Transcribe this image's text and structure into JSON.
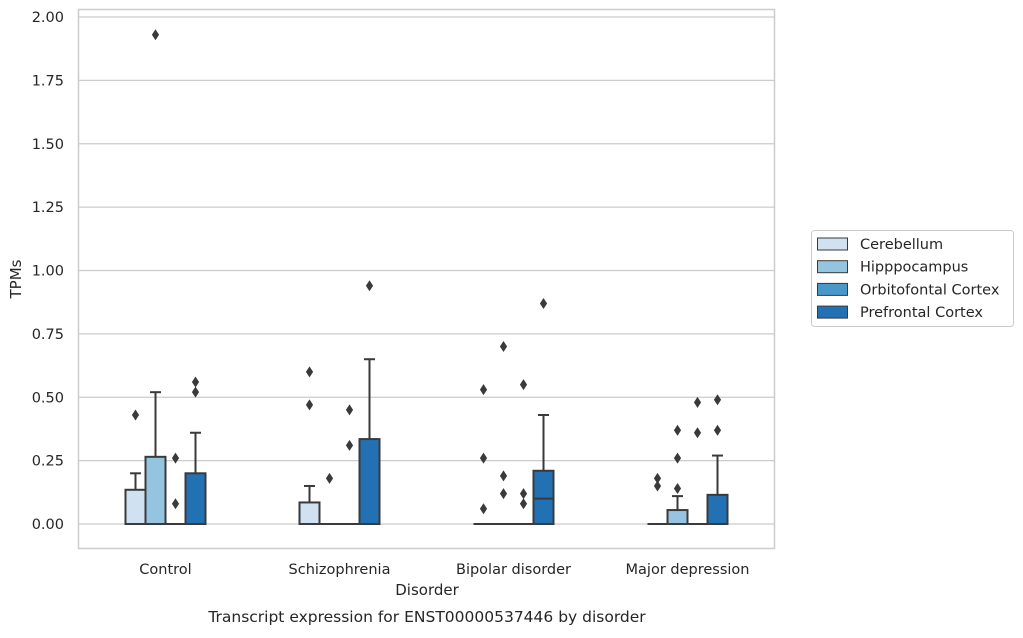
{
  "chart_data": {
    "type": "box",
    "xlabel": "Disorder",
    "ylabel": "TPMs",
    "caption": "Transcript expression for ENST00000537446 by disorder",
    "ylim": [
      -0.09,
      2.03
    ],
    "yticks": [
      0.0,
      0.25,
      0.5,
      0.75,
      1.0,
      1.25,
      1.5,
      1.75,
      2.0
    ],
    "ytick_labels": [
      "0.00",
      "0.25",
      "0.50",
      "0.75",
      "1.00",
      "1.25",
      "1.50",
      "1.75",
      "2.00"
    ],
    "grid": "horizontal",
    "legend_position": "right",
    "categories": [
      "Control",
      "Schizophrenia",
      "Bipolar disorder",
      "Major depression"
    ],
    "series": [
      {
        "name": "Cerebellum",
        "color": "#d0e1f2",
        "boxes": [
          {
            "whisker_low": 0.0,
            "q1": 0.0,
            "median": 0.0,
            "q3": 0.135,
            "whisker_high": 0.2,
            "outliers": [
              0.43
            ]
          },
          {
            "whisker_low": 0.0,
            "q1": 0.0,
            "median": 0.0,
            "q3": 0.085,
            "whisker_high": 0.15,
            "outliers": [
              0.47,
              0.6
            ]
          },
          {
            "whisker_low": 0.0,
            "q1": 0.0,
            "median": 0.0,
            "q3": 0.0,
            "whisker_high": 0.0,
            "outliers": [
              0.06,
              0.26,
              0.53
            ]
          },
          {
            "whisker_low": 0.0,
            "q1": 0.0,
            "median": 0.0,
            "q3": 0.0,
            "whisker_high": 0.0,
            "outliers": [
              0.15,
              0.18
            ]
          }
        ]
      },
      {
        "name": "Hipppocampus",
        "color": "#94c4df",
        "boxes": [
          {
            "whisker_low": 0.0,
            "q1": 0.0,
            "median": 0.0,
            "q3": 0.265,
            "whisker_high": 0.52,
            "outliers": [
              1.93
            ]
          },
          {
            "whisker_low": 0.0,
            "q1": 0.0,
            "median": 0.0,
            "q3": 0.0,
            "whisker_high": 0.0,
            "outliers": [
              0.18
            ]
          },
          {
            "whisker_low": 0.0,
            "q1": 0.0,
            "median": 0.0,
            "q3": 0.0,
            "whisker_high": 0.0,
            "outliers": [
              0.12,
              0.19,
              0.7
            ]
          },
          {
            "whisker_low": 0.0,
            "q1": 0.0,
            "median": 0.0,
            "q3": 0.055,
            "whisker_high": 0.11,
            "outliers": [
              0.14,
              0.26,
              0.37
            ]
          }
        ]
      },
      {
        "name": "Orbitofontal Cortex",
        "color": "#4a98c9",
        "boxes": [
          {
            "whisker_low": 0.0,
            "q1": 0.0,
            "median": 0.0,
            "q3": 0.0,
            "whisker_high": 0.0,
            "outliers": [
              0.08,
              0.26
            ]
          },
          {
            "whisker_low": 0.0,
            "q1": 0.0,
            "median": 0.0,
            "q3": 0.0,
            "whisker_high": 0.0,
            "outliers": [
              0.31,
              0.45
            ]
          },
          {
            "whisker_low": 0.0,
            "q1": 0.0,
            "median": 0.0,
            "q3": 0.0,
            "whisker_high": 0.0,
            "outliers": [
              0.08,
              0.12,
              0.55
            ]
          },
          {
            "whisker_low": 0.0,
            "q1": 0.0,
            "median": 0.0,
            "q3": 0.0,
            "whisker_high": 0.0,
            "outliers": [
              0.36,
              0.48
            ]
          }
        ]
      },
      {
        "name": "Prefrontal Cortex",
        "color": "#2271b5",
        "boxes": [
          {
            "whisker_low": 0.0,
            "q1": 0.0,
            "median": 0.0,
            "q3": 0.2,
            "whisker_high": 0.36,
            "outliers": [
              0.52,
              0.56
            ]
          },
          {
            "whisker_low": 0.0,
            "q1": 0.0,
            "median": 0.0,
            "q3": 0.335,
            "whisker_high": 0.65,
            "outliers": [
              0.94
            ]
          },
          {
            "whisker_low": 0.0,
            "q1": 0.0,
            "median": 0.1,
            "q3": 0.21,
            "whisker_high": 0.43,
            "outliers": [
              0.87
            ]
          },
          {
            "whisker_low": 0.0,
            "q1": 0.0,
            "median": 0.0,
            "q3": 0.115,
            "whisker_high": 0.27,
            "outliers": [
              0.37,
              0.49
            ]
          }
        ]
      }
    ]
  }
}
